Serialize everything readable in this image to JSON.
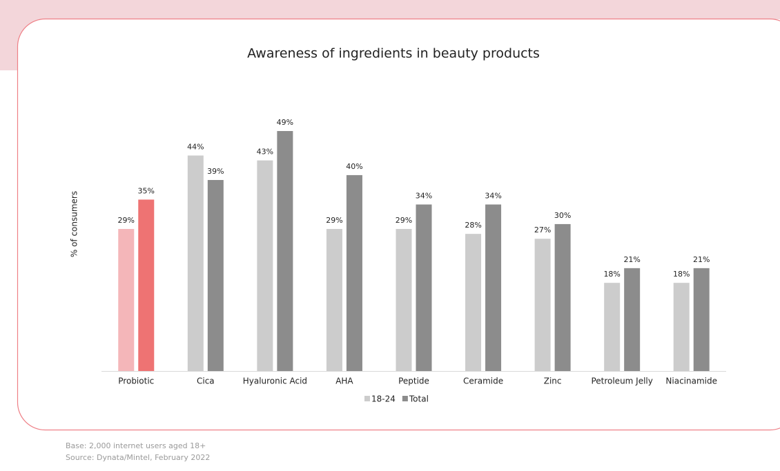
{
  "chart_data": {
    "type": "bar",
    "title": "Awareness of ingredients in beauty products",
    "y_label": "% of consumers",
    "categories": [
      "Probiotic",
      "Cica",
      "Hyaluronic Acid",
      "AHA",
      "Peptide",
      "Ceramide",
      "Zinc",
      "Petroleum Jelly",
      "Niacinamide"
    ],
    "series": [
      {
        "name": "18-24",
        "color": "#cccccc",
        "colors": [
          "#f4b6b9",
          "#cccccc",
          "#cccccc",
          "#cccccc",
          "#cccccc",
          "#cccccc",
          "#cccccc",
          "#cccccc",
          "#cccccc"
        ],
        "values": [
          29,
          44,
          43,
          29,
          29,
          28,
          27,
          18,
          18
        ],
        "value_labels": [
          "29%",
          "44%",
          "43%",
          "29%",
          "29%",
          "28%",
          "27%",
          "18%",
          "18%"
        ]
      },
      {
        "name": "Total",
        "color": "#8c8c8c",
        "colors": [
          "#ee7373",
          "#8c8c8c",
          "#8c8c8c",
          "#8c8c8c",
          "#8c8c8c",
          "#8c8c8c",
          "#8c8c8c",
          "#8c8c8c",
          "#8c8c8c"
        ],
        "values": [
          35,
          39,
          49,
          40,
          34,
          34,
          30,
          21,
          21
        ],
        "value_labels": [
          "35%",
          "39%",
          "49%",
          "40%",
          "34%",
          "34%",
          "30%",
          "21%",
          "21%"
        ]
      }
    ],
    "legend": "bottom"
  },
  "footer": {
    "base": "Base: 2,000 internet users aged 18+",
    "source": "Source: Dynata/Mintel, February 2022"
  }
}
